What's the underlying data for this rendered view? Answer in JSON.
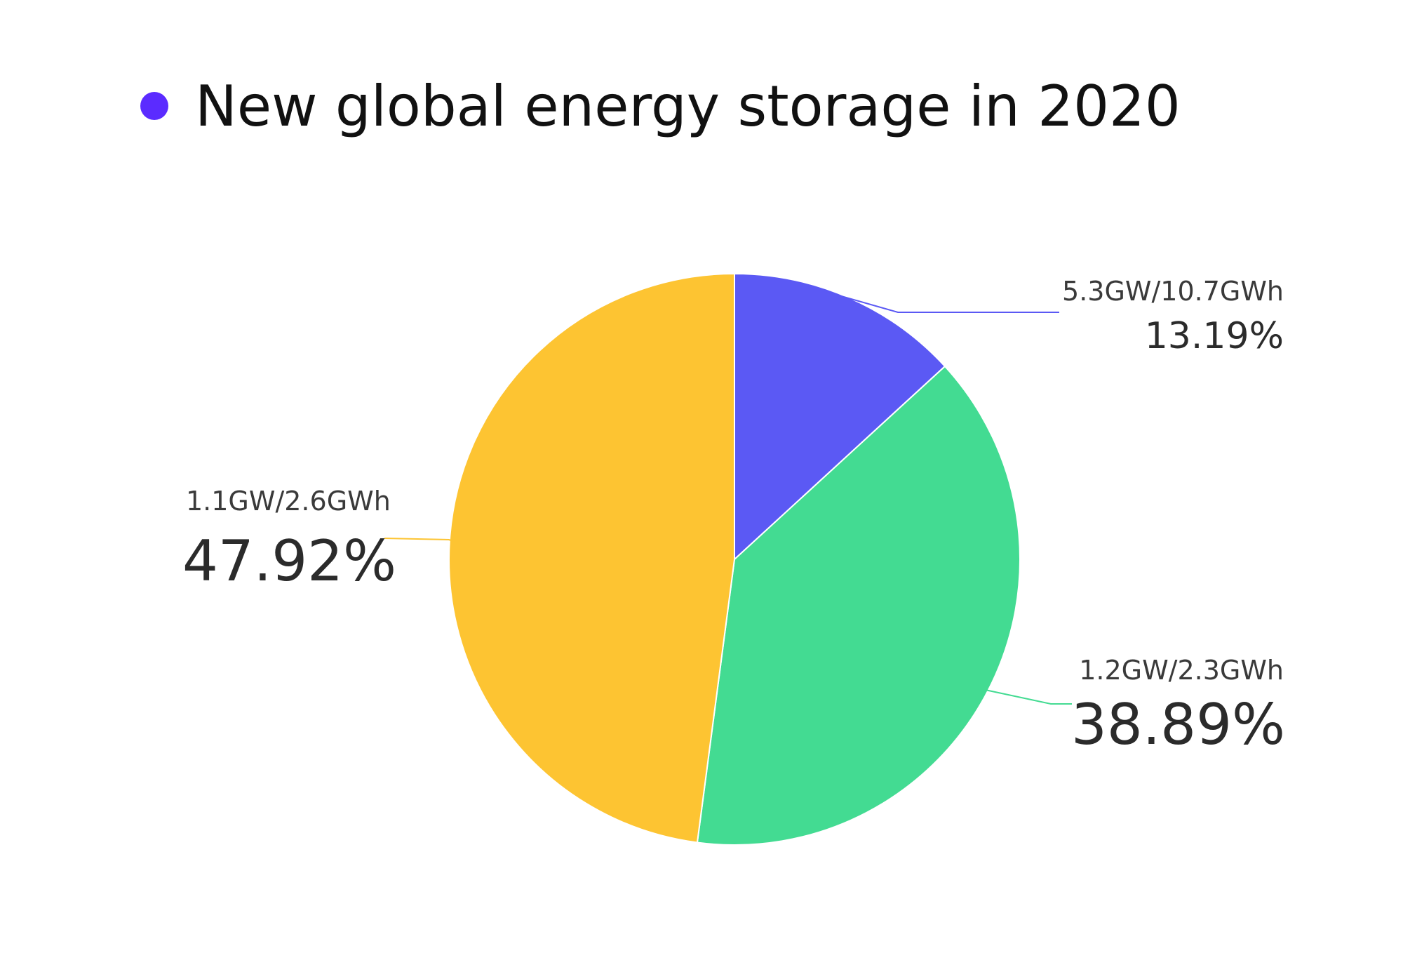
{
  "header": {
    "title": "New global energy storage in 2020",
    "dot_color": "#5b2bff"
  },
  "chart_data": {
    "type": "pie",
    "title": "New global energy storage in 2020",
    "slices": [
      {
        "label": "5.3GW/10.7GWh",
        "percent_label": "13.19%",
        "value": 13.19,
        "color": "#5b59f4"
      },
      {
        "label": "1.2GW/2.3GWh",
        "percent_label": "38.89%",
        "value": 38.89,
        "color": "#43db92"
      },
      {
        "label": "1.1GW/2.6GWh",
        "percent_label": "47.92%",
        "value": 47.92,
        "color": "#fdc432"
      }
    ],
    "start_angle": "12 o'clock",
    "direction": "clockwise",
    "legend": "none"
  }
}
